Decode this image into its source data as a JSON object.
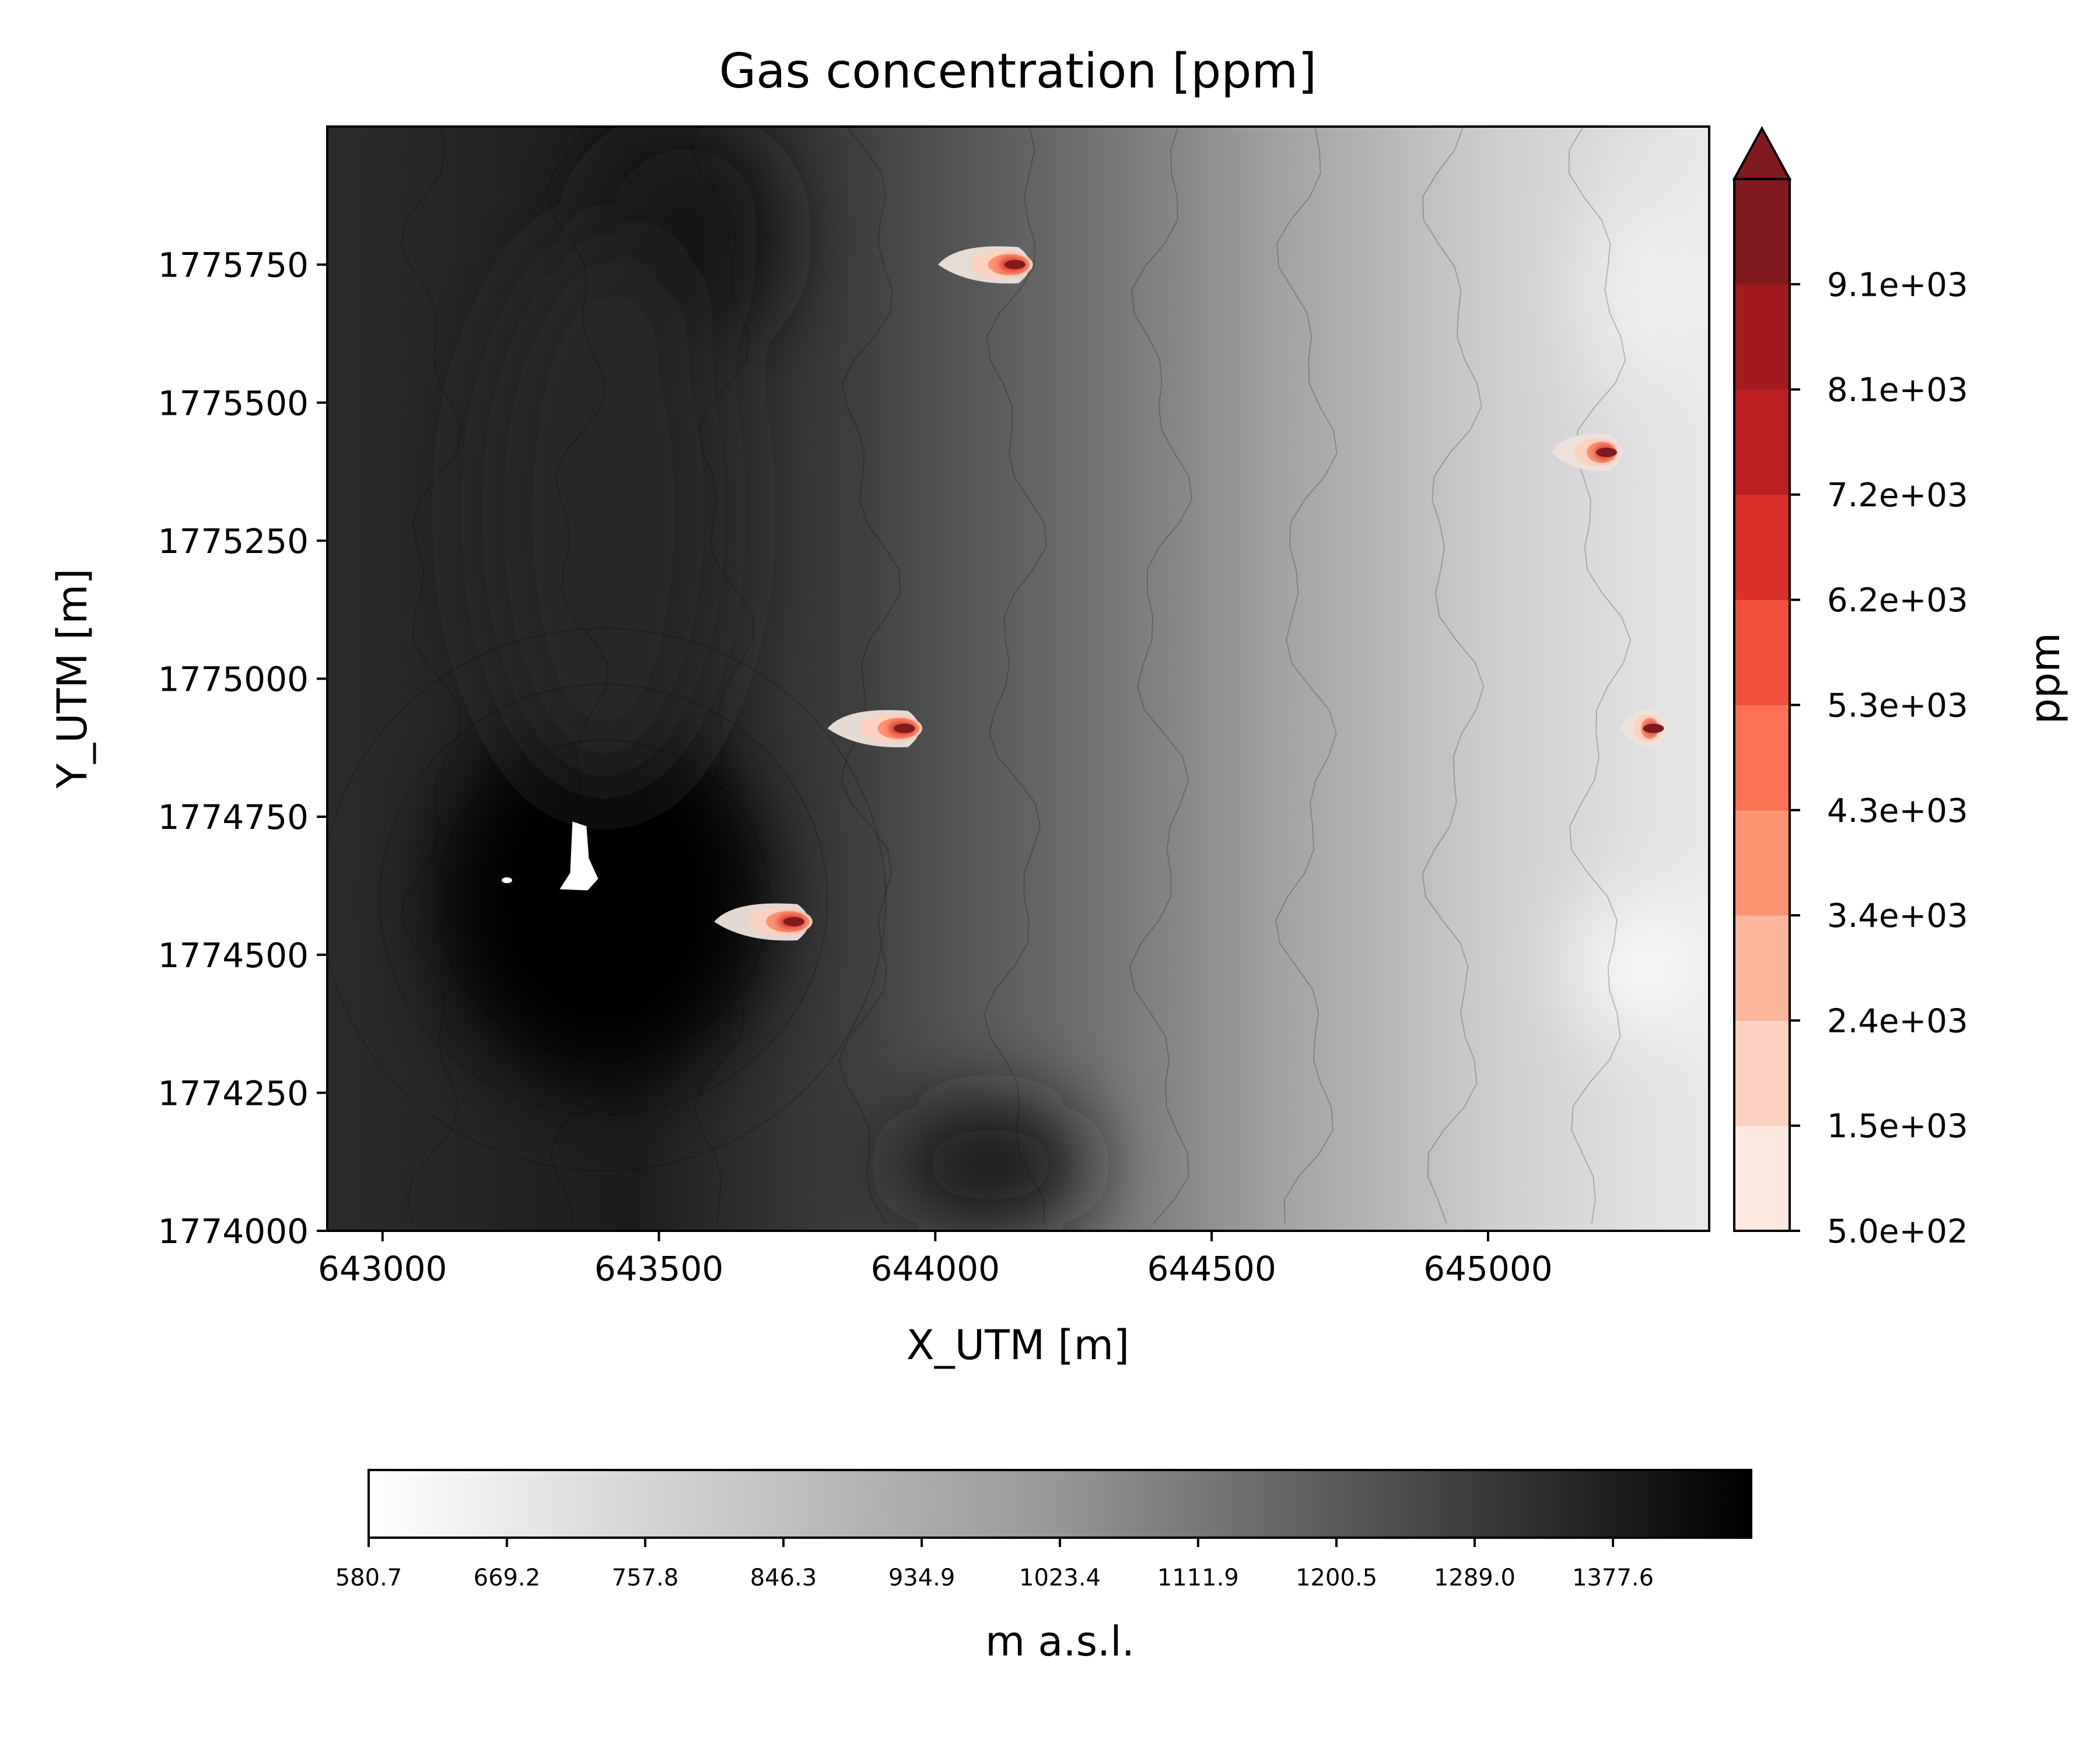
{
  "chart_data": {
    "type": "heatmap",
    "title": "Gas concentration [ppm]",
    "xlabel": "X_UTM [m]",
    "ylabel": "Y_UTM [m]",
    "xlim": [
      642900,
      645400
    ],
    "ylim": [
      1774000,
      1776000
    ],
    "x_ticks": [
      643000,
      643500,
      644000,
      644500,
      645000
    ],
    "x_tick_labels": [
      "643000",
      "643500",
      "644000",
      "644500",
      "645000"
    ],
    "y_ticks": [
      1774000,
      1774250,
      1774500,
      1774750,
      1775000,
      1775250,
      1775500,
      1775750
    ],
    "y_tick_labels": [
      "1774000",
      "1774250",
      "1774500",
      "1774750",
      "1775000",
      "1775250",
      "1775500",
      "1775750"
    ],
    "gas_colorbar": {
      "label": "ppm",
      "levels": [
        500,
        1456,
        2411,
        3367,
        4322,
        5278,
        6233,
        7189,
        8144,
        9100
      ],
      "tick_labels": [
        "5.0e+02",
        "1.5e+03",
        "2.4e+03",
        "3.4e+03",
        "4.3e+03",
        "5.3e+03",
        "6.2e+03",
        "7.2e+03",
        "8.1e+03",
        "9.1e+03"
      ],
      "colors": [
        "#fee9e1",
        "#fcd3c1",
        "#fcb69b",
        "#fc9474",
        "#fb7154",
        "#f0503a",
        "#d93128",
        "#bc1f22",
        "#a11a1c",
        "#811a1f"
      ],
      "extend": "max"
    },
    "elevation_colorbar": {
      "label": "m a.s.l.",
      "range": [
        580.7,
        1466.1
      ],
      "tick_labels": [
        "580.7",
        "669.2",
        "757.8",
        "846.3",
        "934.9",
        "1023.4",
        "1111.9",
        "1200.5",
        "1289.0",
        "1377.6"
      ],
      "colormap": "Greys",
      "orientation": "horizontal"
    },
    "elevation_features": [
      {
        "x": 643400,
        "y": 1774600,
        "elevation": 1466,
        "rx": 300,
        "ry": 340
      },
      {
        "x": 643550,
        "y": 1775800,
        "elevation": 1380,
        "rx": 180,
        "ry": 220
      },
      {
        "x": 644100,
        "y": 1774120,
        "elevation": 1400,
        "rx": 180,
        "ry": 120
      },
      {
        "x": 643400,
        "y": 1775300,
        "elevation": 1330,
        "rx": 220,
        "ry": 500
      },
      {
        "x": 645280,
        "y": 1774480,
        "elevation": 600,
        "rx": 120,
        "ry": 120
      },
      {
        "x": 645300,
        "y": 1775700,
        "elevation": 640,
        "rx": 120,
        "ry": 180
      }
    ],
    "no_data_patches": [
      {
        "x": 643350,
        "y": 1774680
      },
      {
        "x": 643225,
        "y": 1774635
      }
    ],
    "gas_plumes": [
      {
        "x": 644140,
        "y": 1775750,
        "peak_ppm": 9100,
        "tail_x": 644005
      },
      {
        "x": 645210,
        "y": 1775410,
        "peak_ppm": 9100,
        "tail_x": 645115
      },
      {
        "x": 643940,
        "y": 1774910,
        "peak_ppm": 9100,
        "tail_x": 643805
      },
      {
        "x": 645295,
        "y": 1774910,
        "peak_ppm": 9100,
        "tail_x": 645240
      },
      {
        "x": 643740,
        "y": 1774560,
        "peak_ppm": 9100,
        "tail_x": 643600
      }
    ]
  }
}
